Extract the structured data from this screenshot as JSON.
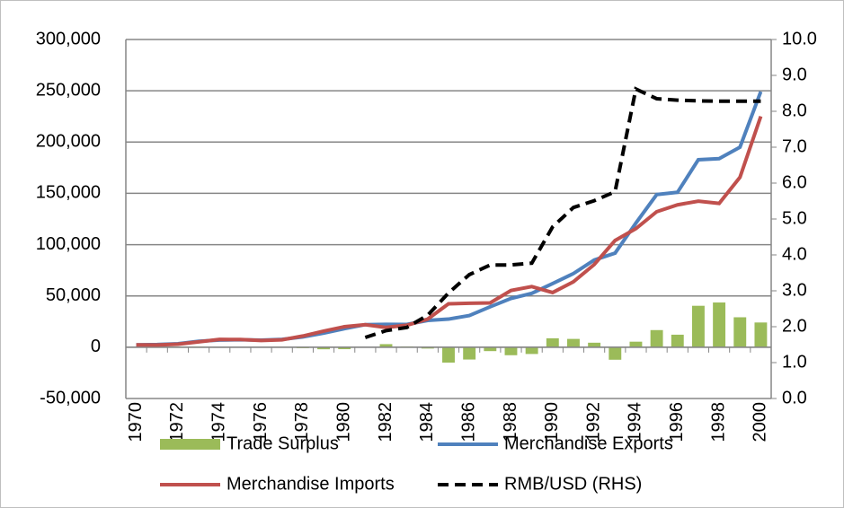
{
  "chart_data": {
    "type": "combo",
    "categories": [
      "1970",
      null,
      "1972",
      null,
      "1974",
      null,
      "1976",
      null,
      "1978",
      null,
      "1980",
      null,
      "1982",
      null,
      "1984",
      null,
      "1986",
      null,
      "1988",
      null,
      "1990",
      null,
      "1992",
      null,
      "1994",
      null,
      "1996",
      null,
      "1998",
      null,
      "2000"
    ],
    "series": [
      {
        "name": "Trade Surplus",
        "type": "bar",
        "color": "#9bbb59",
        "values": [
          0,
          400,
          500,
          600,
          -600,
          -200,
          300,
          400,
          -900,
          -2000,
          -1900,
          0,
          3000,
          800,
          -1300,
          -15000,
          -12000,
          -3800,
          -7800,
          -6600,
          8700,
          8100,
          4400,
          -12200,
          5400,
          16700,
          12200,
          40400,
          43600,
          29200,
          24100
        ]
      },
      {
        "name": "Merchandise Exports",
        "type": "line",
        "color": "#4f81bd",
        "values": [
          2300,
          2600,
          3400,
          5800,
          7000,
          7300,
          6900,
          7600,
          10000,
          13700,
          18100,
          22000,
          22300,
          22200,
          26100,
          27400,
          30900,
          39400,
          47500,
          52500,
          62100,
          71800,
          85000,
          91700,
          121000,
          148800,
          151000,
          182800,
          183800,
          195000,
          249200
        ]
      },
      {
        "name": "Merchandise Imports",
        "type": "line",
        "color": "#c0504d",
        "values": [
          2300,
          2200,
          2900,
          5200,
          7600,
          7500,
          6600,
          7200,
          10900,
          15700,
          20000,
          22000,
          19300,
          21400,
          27400,
          42300,
          42900,
          43200,
          55300,
          59100,
          53300,
          63800,
          80600,
          104000,
          115600,
          132100,
          138800,
          142400,
          140200,
          165700,
          225100
        ]
      },
      {
        "name": "RMB/USD (RHS)",
        "type": "line",
        "color": "#000000",
        "dashed": true,
        "axis": "y2",
        "values": [
          null,
          null,
          null,
          null,
          null,
          null,
          null,
          null,
          null,
          null,
          null,
          1.7,
          1.89,
          1.98,
          2.32,
          2.94,
          3.45,
          3.72,
          3.72,
          3.77,
          4.78,
          5.32,
          5.51,
          5.76,
          8.62,
          8.35,
          8.31,
          8.29,
          8.28,
          8.28,
          8.28
        ]
      }
    ],
    "ylim": [
      -50000,
      300000
    ],
    "yticks": [
      {
        "value": -50000,
        "label": "-50,000"
      },
      0,
      {
        "value": 50000,
        "label": "50,000"
      },
      {
        "value": 100000,
        "label": "100,000"
      },
      {
        "value": 150000,
        "label": "150,000"
      },
      {
        "value": 200000,
        "label": "200,000"
      },
      {
        "value": 250000,
        "label": "250,000"
      },
      {
        "value": 300000,
        "label": "300,000"
      }
    ],
    "y2lim": [
      0,
      10
    ],
    "y2ticks": [
      {
        "value": 0,
        "label": "0.0"
      },
      {
        "value": 1,
        "label": "1.0"
      },
      {
        "value": 2,
        "label": "2.0"
      },
      {
        "value": 3,
        "label": "3.0"
      },
      {
        "value": 4,
        "label": "4.0"
      },
      {
        "value": 5,
        "label": "5.0"
      },
      {
        "value": 6,
        "label": "6.0"
      },
      {
        "value": 7,
        "label": "7.0"
      },
      {
        "value": 8,
        "label": "8.0"
      },
      {
        "value": 9,
        "label": "9.0"
      },
      {
        "value": 10,
        "label": "10.0"
      }
    ],
    "grid": true,
    "legend": "bottom"
  }
}
